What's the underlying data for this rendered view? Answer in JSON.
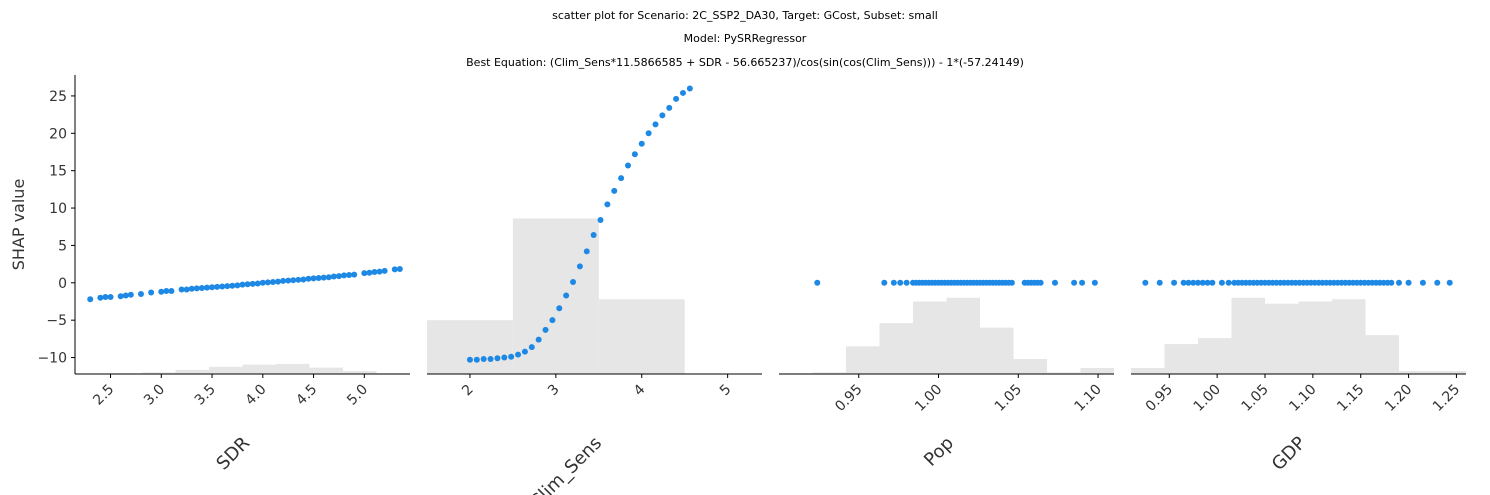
{
  "header": {
    "title_line1": "scatter plot for Scenario: 2C_SSP2_DA30, Target: GCost, Subset: small",
    "title_line2": "Model: PySRRegressor",
    "title_line3": "Best Equation: (Clim_Sens*11.5866585 + SDR - 56.665237)/cos(sin(cos(Clim_Sens))) - 1*(-57.24149)"
  },
  "colors": {
    "point": "#1e88e5",
    "histogram": "#e6e6e6",
    "axis": "#000000"
  },
  "chart_data": {
    "type": "scatter",
    "ylabel": "SHAP value",
    "ylim": [
      -12.2,
      27.8
    ],
    "yticks": [
      25,
      20,
      15,
      10,
      5,
      0,
      -5,
      -10
    ],
    "yticklabels": [
      "25",
      "20",
      "15",
      "10",
      "5",
      "0",
      "−5",
      "−10"
    ],
    "panels": [
      {
        "xlabel": "SDR",
        "xlim": [
          2.15,
          5.45
        ],
        "xticks": [
          2.5,
          3.0,
          3.5,
          4.0,
          4.5,
          5.0
        ],
        "xticklabels": [
          "2.5",
          "3.0",
          "3.5",
          "4.0",
          "4.5",
          "5.0"
        ],
        "hist_bins": [
          2.15,
          2.48,
          2.81,
          3.14,
          3.47,
          3.8,
          4.13,
          4.46,
          4.79,
          5.12,
          5.45
        ],
        "hist_heights": [
          0.05,
          0.1,
          0.2,
          0.55,
          0.95,
          1.25,
          1.35,
          0.85,
          0.4,
          0.1
        ],
        "points": [
          [
            2.3,
            -2.2
          ],
          [
            2.4,
            -2.0
          ],
          [
            2.45,
            -1.9
          ],
          [
            2.5,
            -1.9
          ],
          [
            2.6,
            -1.8
          ],
          [
            2.65,
            -1.7
          ],
          [
            2.7,
            -1.6
          ],
          [
            2.8,
            -1.5
          ],
          [
            2.9,
            -1.3
          ],
          [
            3.0,
            -1.2
          ],
          [
            3.05,
            -1.1
          ],
          [
            3.1,
            -1.1
          ],
          [
            3.2,
            -0.9
          ],
          [
            3.25,
            -0.9
          ],
          [
            3.3,
            -0.8
          ],
          [
            3.35,
            -0.75
          ],
          [
            3.4,
            -0.7
          ],
          [
            3.45,
            -0.65
          ],
          [
            3.5,
            -0.6
          ],
          [
            3.55,
            -0.55
          ],
          [
            3.6,
            -0.5
          ],
          [
            3.65,
            -0.45
          ],
          [
            3.7,
            -0.4
          ],
          [
            3.75,
            -0.35
          ],
          [
            3.8,
            -0.25
          ],
          [
            3.85,
            -0.2
          ],
          [
            3.9,
            -0.15
          ],
          [
            3.95,
            -0.1
          ],
          [
            4.0,
            0.0
          ],
          [
            4.05,
            0.05
          ],
          [
            4.1,
            0.1
          ],
          [
            4.15,
            0.15
          ],
          [
            4.2,
            0.25
          ],
          [
            4.25,
            0.3
          ],
          [
            4.3,
            0.35
          ],
          [
            4.35,
            0.4
          ],
          [
            4.4,
            0.45
          ],
          [
            4.45,
            0.55
          ],
          [
            4.5,
            0.6
          ],
          [
            4.55,
            0.65
          ],
          [
            4.6,
            0.7
          ],
          [
            4.65,
            0.75
          ],
          [
            4.7,
            0.85
          ],
          [
            4.75,
            0.9
          ],
          [
            4.8,
            1.0
          ],
          [
            4.85,
            1.05
          ],
          [
            4.9,
            1.1
          ],
          [
            5.0,
            1.3
          ],
          [
            5.05,
            1.35
          ],
          [
            5.1,
            1.45
          ],
          [
            5.15,
            1.5
          ],
          [
            5.2,
            1.6
          ],
          [
            5.3,
            1.8
          ],
          [
            5.35,
            1.85
          ]
        ]
      },
      {
        "xlabel": "Clim_Sens",
        "xlim": [
          1.5,
          5.4
        ],
        "xticks": [
          2,
          3,
          4,
          5
        ],
        "xticklabels": [
          "2",
          "3",
          "4",
          "5"
        ],
        "hist_bins": [
          1.5,
          2.5,
          3.5,
          4.5,
          5.4
        ],
        "hist_heights": [
          7.2,
          20.8,
          10.0,
          0.0
        ],
        "points": [
          [
            2.0,
            -10.3
          ],
          [
            2.08,
            -10.3
          ],
          [
            2.16,
            -10.2
          ],
          [
            2.24,
            -10.2
          ],
          [
            2.32,
            -10.1
          ],
          [
            2.4,
            -10.0
          ],
          [
            2.48,
            -9.9
          ],
          [
            2.56,
            -9.6
          ],
          [
            2.64,
            -9.2
          ],
          [
            2.72,
            -8.6
          ],
          [
            2.8,
            -7.6
          ],
          [
            2.88,
            -6.3
          ],
          [
            2.96,
            -5.0
          ],
          [
            3.04,
            -3.4
          ],
          [
            3.12,
            -1.7
          ],
          [
            3.2,
            0.1
          ],
          [
            3.28,
            2.2
          ],
          [
            3.36,
            4.2
          ],
          [
            3.44,
            6.4
          ],
          [
            3.52,
            8.4
          ],
          [
            3.6,
            10.5
          ],
          [
            3.68,
            12.3
          ],
          [
            3.76,
            14.0
          ],
          [
            3.84,
            15.7
          ],
          [
            3.92,
            17.2
          ],
          [
            4.0,
            18.6
          ],
          [
            4.08,
            20.0
          ],
          [
            4.16,
            21.2
          ],
          [
            4.24,
            22.4
          ],
          [
            4.32,
            23.4
          ],
          [
            4.4,
            24.6
          ],
          [
            4.48,
            25.4
          ],
          [
            4.56,
            26.0
          ]
        ]
      },
      {
        "xlabel": "Pop",
        "xlim": [
          0.9,
          1.11
        ],
        "xticks": [
          0.95,
          1.0,
          1.05,
          1.1
        ],
        "xticklabels": [
          "0.95",
          "1.00",
          "1.05",
          "1.10"
        ],
        "hist_bins": [
          0.9,
          0.921,
          0.942,
          0.963,
          0.984,
          1.005,
          1.026,
          1.047,
          1.068,
          1.089,
          1.11
        ],
        "hist_heights": [
          0.1,
          0.2,
          3.7,
          6.8,
          9.7,
          10.2,
          6.2,
          2.0,
          0.2,
          0.8
        ],
        "points": [
          [
            0.924,
            0
          ],
          [
            0.966,
            0
          ],
          [
            0.972,
            0
          ],
          [
            0.976,
            0
          ],
          [
            0.98,
            0
          ],
          [
            0.984,
            0
          ],
          [
            0.986,
            0
          ],
          [
            0.988,
            0
          ],
          [
            0.99,
            0
          ],
          [
            0.992,
            0
          ],
          [
            0.994,
            0
          ],
          [
            0.996,
            0
          ],
          [
            0.998,
            0
          ],
          [
            1.0,
            0
          ],
          [
            1.002,
            0
          ],
          [
            1.004,
            0
          ],
          [
            1.006,
            0
          ],
          [
            1.008,
            0
          ],
          [
            1.01,
            0
          ],
          [
            1.012,
            0
          ],
          [
            1.014,
            0
          ],
          [
            1.016,
            0
          ],
          [
            1.018,
            0
          ],
          [
            1.02,
            0
          ],
          [
            1.022,
            0
          ],
          [
            1.024,
            0
          ],
          [
            1.026,
            0
          ],
          [
            1.028,
            0
          ],
          [
            1.03,
            0
          ],
          [
            1.032,
            0
          ],
          [
            1.034,
            0
          ],
          [
            1.036,
            0
          ],
          [
            1.038,
            0
          ],
          [
            1.04,
            0
          ],
          [
            1.042,
            0
          ],
          [
            1.044,
            0
          ],
          [
            1.046,
            0
          ],
          [
            1.054,
            0
          ],
          [
            1.056,
            0
          ],
          [
            1.058,
            0
          ],
          [
            1.06,
            0
          ],
          [
            1.062,
            0
          ],
          [
            1.064,
            0
          ],
          [
            1.073,
            0
          ],
          [
            1.085,
            0
          ],
          [
            1.09,
            0
          ],
          [
            1.098,
            0
          ]
        ]
      },
      {
        "xlabel": "GDP",
        "xlim": [
          0.91,
          1.26
        ],
        "xticks": [
          0.95,
          1.0,
          1.05,
          1.1,
          1.15,
          1.2,
          1.25
        ],
        "xticklabels": [
          "0.95",
          "1.00",
          "1.05",
          "1.10",
          "1.15",
          "1.20",
          "1.25"
        ],
        "hist_bins": [
          0.91,
          0.945,
          0.98,
          1.015,
          1.05,
          1.085,
          1.12,
          1.155,
          1.19,
          1.225,
          1.26
        ],
        "hist_heights": [
          0.8,
          4.0,
          4.8,
          10.2,
          9.4,
          9.7,
          10.0,
          5.2,
          0.4,
          0.4
        ],
        "points": [
          [
            0.925,
            0
          ],
          [
            0.94,
            0
          ],
          [
            0.955,
            0
          ],
          [
            0.965,
            0
          ],
          [
            0.97,
            0
          ],
          [
            0.975,
            0
          ],
          [
            0.98,
            0
          ],
          [
            0.985,
            0
          ],
          [
            0.99,
            0
          ],
          [
            0.995,
            0
          ],
          [
            1.005,
            0
          ],
          [
            1.012,
            0
          ],
          [
            1.018,
            0
          ],
          [
            1.022,
            0
          ],
          [
            1.026,
            0
          ],
          [
            1.03,
            0
          ],
          [
            1.034,
            0
          ],
          [
            1.038,
            0
          ],
          [
            1.042,
            0
          ],
          [
            1.046,
            0
          ],
          [
            1.05,
            0
          ],
          [
            1.054,
            0
          ],
          [
            1.058,
            0
          ],
          [
            1.062,
            0
          ],
          [
            1.066,
            0
          ],
          [
            1.07,
            0
          ],
          [
            1.074,
            0
          ],
          [
            1.078,
            0
          ],
          [
            1.082,
            0
          ],
          [
            1.086,
            0
          ],
          [
            1.09,
            0
          ],
          [
            1.094,
            0
          ],
          [
            1.098,
            0
          ],
          [
            1.102,
            0
          ],
          [
            1.106,
            0
          ],
          [
            1.11,
            0
          ],
          [
            1.114,
            0
          ],
          [
            1.118,
            0
          ],
          [
            1.122,
            0
          ],
          [
            1.126,
            0
          ],
          [
            1.13,
            0
          ],
          [
            1.134,
            0
          ],
          [
            1.138,
            0
          ],
          [
            1.142,
            0
          ],
          [
            1.146,
            0
          ],
          [
            1.15,
            0
          ],
          [
            1.154,
            0
          ],
          [
            1.158,
            0
          ],
          [
            1.162,
            0
          ],
          [
            1.166,
            0
          ],
          [
            1.17,
            0
          ],
          [
            1.174,
            0
          ],
          [
            1.178,
            0
          ],
          [
            1.182,
            0
          ],
          [
            1.19,
            0
          ],
          [
            1.2,
            0
          ],
          [
            1.215,
            0
          ],
          [
            1.23,
            0
          ],
          [
            1.243,
            0
          ]
        ]
      }
    ]
  }
}
